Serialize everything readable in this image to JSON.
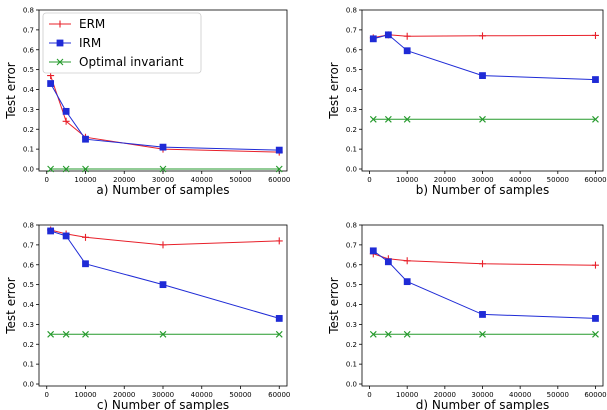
{
  "colors": {
    "ERM": "#e8202a",
    "IRM": "#1f2bd6",
    "Optimal invariant": "#259a2c"
  },
  "chart_data": [
    {
      "type": "line",
      "xlabel": "a) Number of samples",
      "ylabel": "Test error",
      "xlim": [
        -2000,
        62000
      ],
      "ylim": [
        -0.01,
        0.8
      ],
      "xticks": [
        0,
        10000,
        20000,
        30000,
        40000,
        50000,
        60000
      ],
      "xtick_labels": [
        "0",
        "10000",
        "20000",
        "30000",
        "40000",
        "50000",
        "60000"
      ],
      "yticks": [
        0.0,
        0.1,
        0.2,
        0.3,
        0.4,
        0.5,
        0.6,
        0.7,
        0.8
      ],
      "ytick_labels": [
        "0.0",
        "0.1",
        "0.2",
        "0.3",
        "0.4",
        "0.5",
        "0.6",
        "0.7",
        "0.8"
      ],
      "legend": "top-left",
      "grid": false,
      "series": [
        {
          "name": "ERM",
          "marker": "plus",
          "x": [
            1000,
            5000,
            10000,
            30000,
            60000
          ],
          "values": [
            0.47,
            0.24,
            0.16,
            0.1,
            0.085
          ]
        },
        {
          "name": "IRM",
          "marker": "square",
          "x": [
            1000,
            5000,
            10000,
            30000,
            60000
          ],
          "values": [
            0.43,
            0.29,
            0.15,
            0.11,
            0.095
          ]
        },
        {
          "name": "Optimal invariant",
          "marker": "x",
          "x": [
            1000,
            5000,
            10000,
            30000,
            60000
          ],
          "values": [
            0.0,
            0.0,
            0.0,
            0.0,
            0.0
          ]
        }
      ]
    },
    {
      "type": "line",
      "xlabel": "b) Number of samples",
      "ylabel": "Test error",
      "xlim": [
        -2000,
        62000
      ],
      "ylim": [
        -0.01,
        0.8
      ],
      "xticks": [
        0,
        10000,
        20000,
        30000,
        40000,
        50000,
        60000
      ],
      "xtick_labels": [
        "0",
        "10000",
        "20000",
        "30000",
        "40000",
        "50000",
        "60000"
      ],
      "yticks": [
        0.0,
        0.1,
        0.2,
        0.3,
        0.4,
        0.5,
        0.6,
        0.7,
        0.8
      ],
      "ytick_labels": [
        "0.0",
        "0.1",
        "0.2",
        "0.3",
        "0.4",
        "0.5",
        "0.6",
        "0.7",
        "0.8"
      ],
      "grid": false,
      "series": [
        {
          "name": "ERM",
          "marker": "plus",
          "x": [
            1000,
            5000,
            10000,
            30000,
            60000
          ],
          "values": [
            0.66,
            0.675,
            0.668,
            0.67,
            0.672
          ]
        },
        {
          "name": "IRM",
          "marker": "square",
          "x": [
            1000,
            5000,
            10000,
            30000,
            60000
          ],
          "values": [
            0.655,
            0.675,
            0.595,
            0.47,
            0.45
          ]
        },
        {
          "name": "Optimal invariant",
          "marker": "x",
          "x": [
            1000,
            5000,
            10000,
            30000,
            60000
          ],
          "values": [
            0.25,
            0.25,
            0.25,
            0.25,
            0.25
          ]
        }
      ]
    },
    {
      "type": "line",
      "xlabel": "c) Number of samples",
      "ylabel": "Test error",
      "xlim": [
        -2000,
        62000
      ],
      "ylim": [
        -0.01,
        0.8
      ],
      "xticks": [
        0,
        10000,
        20000,
        30000,
        40000,
        50000,
        60000
      ],
      "xtick_labels": [
        "0",
        "10000",
        "20000",
        "30000",
        "40000",
        "50000",
        "60000"
      ],
      "yticks": [
        0.0,
        0.1,
        0.2,
        0.3,
        0.4,
        0.5,
        0.6,
        0.7,
        0.8
      ],
      "ytick_labels": [
        "0.0",
        "0.1",
        "0.2",
        "0.3",
        "0.4",
        "0.5",
        "0.6",
        "0.7",
        "0.8"
      ],
      "grid": false,
      "series": [
        {
          "name": "ERM",
          "marker": "plus",
          "x": [
            1000,
            5000,
            10000,
            30000,
            60000
          ],
          "values": [
            0.775,
            0.755,
            0.738,
            0.7,
            0.72
          ]
        },
        {
          "name": "IRM",
          "marker": "square",
          "x": [
            1000,
            5000,
            10000,
            30000,
            60000
          ],
          "values": [
            0.77,
            0.745,
            0.605,
            0.5,
            0.33
          ]
        },
        {
          "name": "Optimal invariant",
          "marker": "x",
          "x": [
            1000,
            5000,
            10000,
            30000,
            60000
          ],
          "values": [
            0.25,
            0.25,
            0.25,
            0.25,
            0.25
          ]
        }
      ]
    },
    {
      "type": "line",
      "xlabel": "d) Number of samples",
      "ylabel": "Test error",
      "xlim": [
        -2000,
        62000
      ],
      "ylim": [
        -0.01,
        0.8
      ],
      "xticks": [
        0,
        10000,
        20000,
        30000,
        40000,
        50000,
        60000
      ],
      "xtick_labels": [
        "0",
        "10000",
        "20000",
        "30000",
        "40000",
        "50000",
        "60000"
      ],
      "yticks": [
        0.0,
        0.1,
        0.2,
        0.3,
        0.4,
        0.5,
        0.6,
        0.7,
        0.8
      ],
      "ytick_labels": [
        "0.0",
        "0.1",
        "0.2",
        "0.3",
        "0.4",
        "0.5",
        "0.6",
        "0.7",
        "0.8"
      ],
      "grid": false,
      "series": [
        {
          "name": "ERM",
          "marker": "plus",
          "x": [
            1000,
            5000,
            10000,
            30000,
            60000
          ],
          "values": [
            0.655,
            0.63,
            0.62,
            0.605,
            0.598
          ]
        },
        {
          "name": "IRM",
          "marker": "square",
          "x": [
            1000,
            5000,
            10000,
            30000,
            60000
          ],
          "values": [
            0.67,
            0.615,
            0.515,
            0.35,
            0.33
          ]
        },
        {
          "name": "Optimal invariant",
          "marker": "x",
          "x": [
            1000,
            5000,
            10000,
            30000,
            60000
          ],
          "values": [
            0.25,
            0.25,
            0.25,
            0.25,
            0.25
          ]
        }
      ]
    }
  ]
}
